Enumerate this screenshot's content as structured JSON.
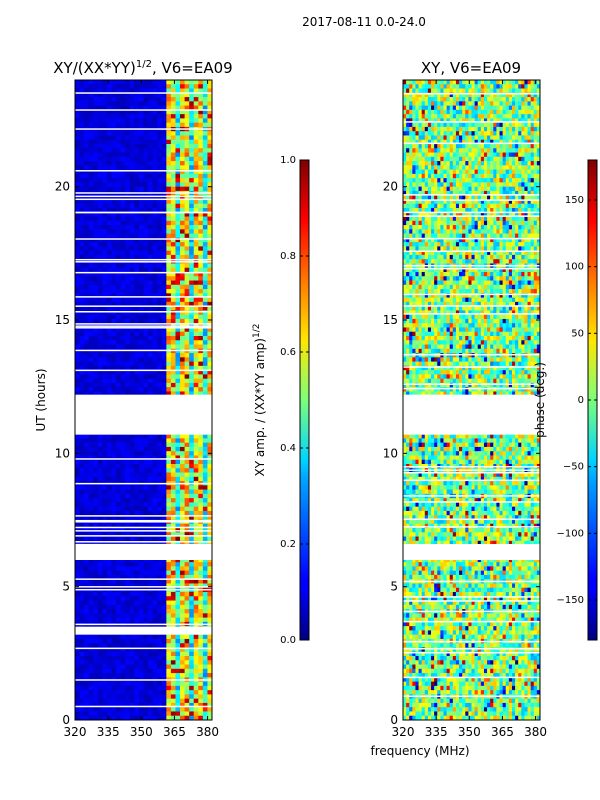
{
  "figure_title": "2017-08-11 0.0-24.0",
  "shared_xlabel": "frequency (MHz)",
  "colors": {
    "missing": "#ffffff",
    "low": "#00007f",
    "high": "#7f0000"
  },
  "chart_data": [
    {
      "type": "heatmap",
      "title": "XY/(XX*YY)^{1/2}, V6=EA09",
      "title_text": "XY/(XX*YY)",
      "title_exponent": "1/2",
      "title_suffix": ", V6=EA09",
      "xlabel": "",
      "ylabel": "UT (hours)",
      "xlim": [
        320,
        382
      ],
      "ylim": [
        0,
        24
      ],
      "xticks": [
        320,
        335,
        350,
        365,
        380
      ],
      "yticks": [
        0,
        5,
        10,
        15,
        20
      ],
      "colorbar": {
        "label": "XY amp. / (XX*YY amp)^{1/2}",
        "label_text": "XY amp. / (XX*YY amp)",
        "label_exponent": "1/2",
        "range": [
          0.0,
          1.0
        ],
        "ticks": [
          "0.0",
          "0.2",
          "0.4",
          "0.6",
          "0.8",
          "1.0"
        ],
        "colormap": "jet"
      },
      "gaps_hours": [
        [
          10.7,
          12.2
        ],
        [
          6.0,
          6.6
        ],
        [
          3.2,
          3.5
        ]
      ]
    },
    {
      "type": "heatmap",
      "title": "XY, V6=EA09",
      "xlabel": "",
      "ylabel": "",
      "xlim": [
        320,
        382
      ],
      "ylim": [
        0,
        24
      ],
      "xticks": [
        320,
        335,
        350,
        365,
        380
      ],
      "yticks": [
        0,
        5,
        10,
        15,
        20
      ],
      "colorbar": {
        "label": "phase (deg.)",
        "range": [
          -180,
          180
        ],
        "ticks": [
          "−150",
          "−100",
          "−50",
          "0",
          "50",
          "100",
          "150"
        ],
        "colormap": "jet"
      },
      "gaps_hours": [
        [
          10.7,
          12.2
        ],
        [
          6.0,
          6.6
        ]
      ]
    }
  ]
}
